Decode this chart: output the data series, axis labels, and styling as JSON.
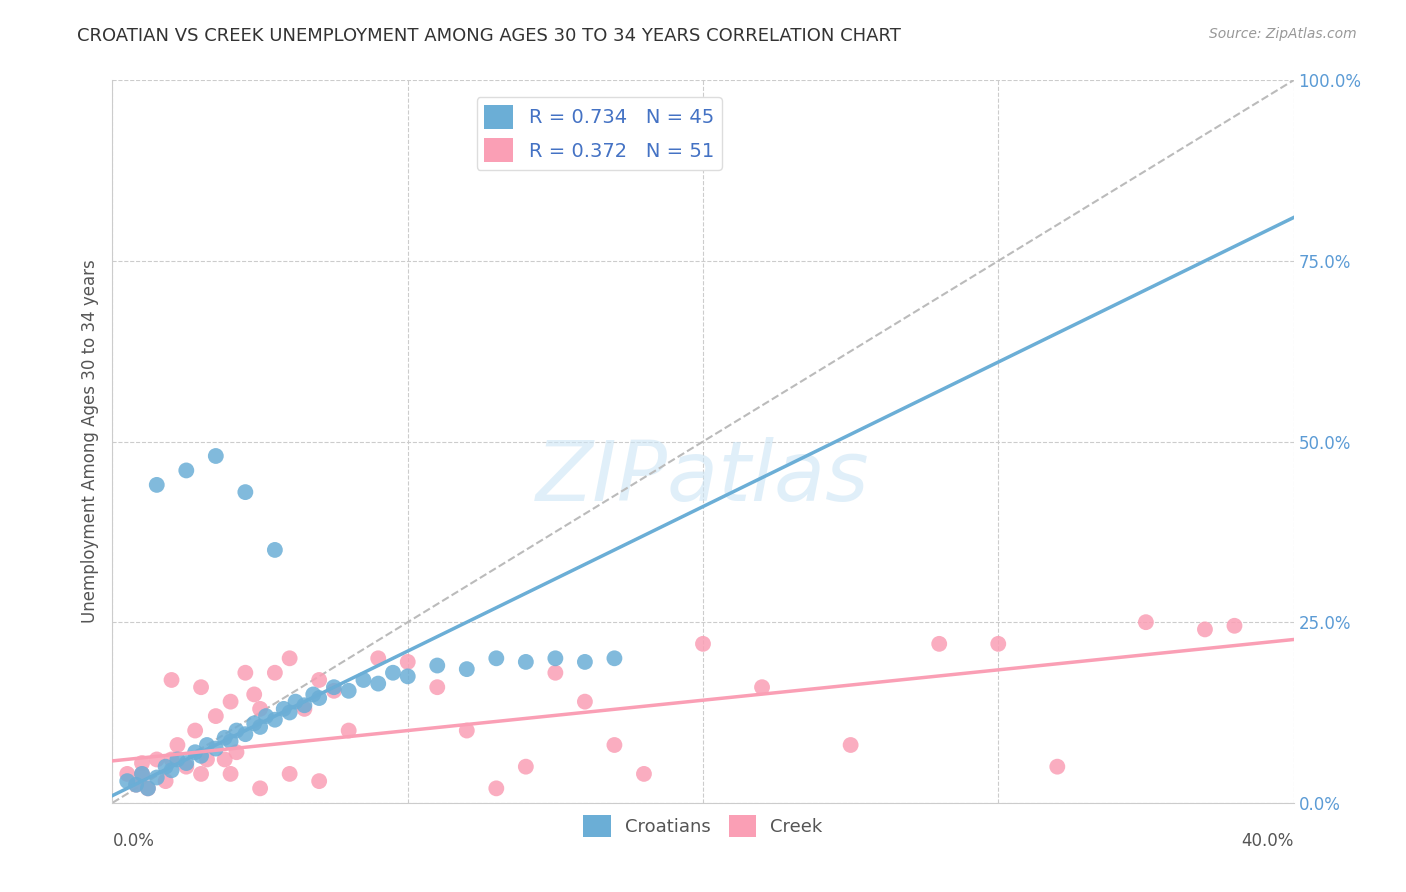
{
  "title": "CROATIAN VS CREEK UNEMPLOYMENT AMONG AGES 30 TO 34 YEARS CORRELATION CHART",
  "source": "Source: ZipAtlas.com",
  "ylabel": "Unemployment Among Ages 30 to 34 years",
  "xlim": [
    0.0,
    0.4
  ],
  "ylim": [
    0.0,
    1.0
  ],
  "yticks": [
    0.0,
    0.25,
    0.5,
    0.75,
    1.0
  ],
  "ytick_labels": [
    "0.0%",
    "25.0%",
    "50.0%",
    "75.0%",
    "100.0%"
  ],
  "xticks": [
    0.0,
    0.1,
    0.2,
    0.3,
    0.4
  ],
  "croatian_color": "#6baed6",
  "creek_color": "#fa9fb5",
  "croatian_R": 0.734,
  "croatian_N": 45,
  "creek_R": 0.372,
  "creek_N": 51,
  "legend_label_croatian": "Croatians",
  "legend_label_creek": "Creek",
  "background_color": "#ffffff",
  "grid_color": "#cccccc",
  "croatian_scatter_x": [
    0.005,
    0.008,
    0.01,
    0.012,
    0.015,
    0.018,
    0.02,
    0.022,
    0.025,
    0.028,
    0.03,
    0.032,
    0.035,
    0.038,
    0.04,
    0.042,
    0.045,
    0.048,
    0.05,
    0.052,
    0.055,
    0.058,
    0.06,
    0.062,
    0.065,
    0.068,
    0.07,
    0.075,
    0.08,
    0.085,
    0.09,
    0.095,
    0.1,
    0.11,
    0.12,
    0.13,
    0.14,
    0.15,
    0.16,
    0.17,
    0.015,
    0.025,
    0.035,
    0.045,
    0.055
  ],
  "croatian_scatter_y": [
    0.03,
    0.025,
    0.04,
    0.02,
    0.035,
    0.05,
    0.045,
    0.06,
    0.055,
    0.07,
    0.065,
    0.08,
    0.075,
    0.09,
    0.085,
    0.1,
    0.095,
    0.11,
    0.105,
    0.12,
    0.115,
    0.13,
    0.125,
    0.14,
    0.135,
    0.15,
    0.145,
    0.16,
    0.155,
    0.17,
    0.165,
    0.18,
    0.175,
    0.19,
    0.185,
    0.2,
    0.195,
    0.2,
    0.195,
    0.2,
    0.44,
    0.46,
    0.48,
    0.43,
    0.35
  ],
  "creek_scatter_x": [
    0.005,
    0.008,
    0.01,
    0.012,
    0.015,
    0.018,
    0.02,
    0.022,
    0.025,
    0.028,
    0.03,
    0.032,
    0.035,
    0.038,
    0.04,
    0.042,
    0.045,
    0.048,
    0.05,
    0.055,
    0.06,
    0.065,
    0.07,
    0.075,
    0.08,
    0.09,
    0.1,
    0.11,
    0.12,
    0.13,
    0.14,
    0.15,
    0.16,
    0.17,
    0.18,
    0.2,
    0.22,
    0.25,
    0.28,
    0.3,
    0.32,
    0.35,
    0.37,
    0.38,
    0.01,
    0.02,
    0.03,
    0.04,
    0.05,
    0.06,
    0.07
  ],
  "creek_scatter_y": [
    0.04,
    0.025,
    0.055,
    0.02,
    0.06,
    0.03,
    0.17,
    0.08,
    0.05,
    0.1,
    0.16,
    0.06,
    0.12,
    0.06,
    0.14,
    0.07,
    0.18,
    0.15,
    0.13,
    0.18,
    0.2,
    0.13,
    0.17,
    0.155,
    0.1,
    0.2,
    0.195,
    0.16,
    0.1,
    0.02,
    0.05,
    0.18,
    0.14,
    0.08,
    0.04,
    0.22,
    0.16,
    0.08,
    0.22,
    0.22,
    0.05,
    0.25,
    0.24,
    0.245,
    0.04,
    0.06,
    0.04,
    0.04,
    0.02,
    0.04,
    0.03
  ],
  "croatian_slope": 2.0,
  "croatian_intercept": 0.01,
  "creek_slope": 0.42,
  "creek_intercept": 0.058
}
